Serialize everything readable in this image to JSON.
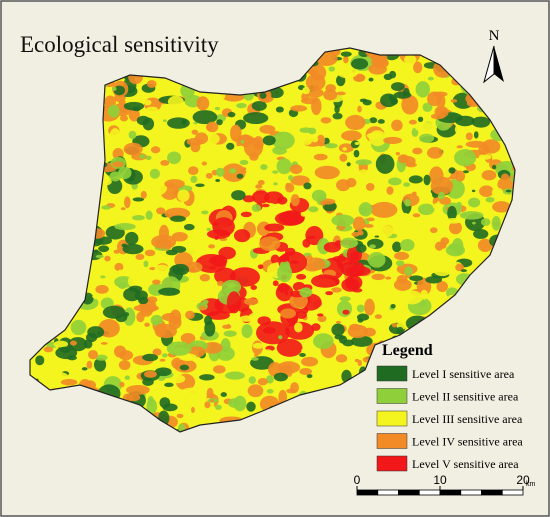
{
  "title": "Ecological sensitivity",
  "north": "N",
  "legend": {
    "title": "Legend",
    "items": [
      {
        "label": "Level I sensitive area",
        "color": "#1f6b22"
      },
      {
        "label": "Level II sensitive area",
        "color": "#8fd03a"
      },
      {
        "label": "Level III sensitive area",
        "color": "#f4f41e"
      },
      {
        "label": "Level IV sensitive area",
        "color": "#f28a26"
      },
      {
        "label": "Level V sensitive area",
        "color": "#f2181a"
      }
    ]
  },
  "scale_bar": {
    "ticks": [
      0,
      10,
      20
    ],
    "unit": "km"
  }
}
